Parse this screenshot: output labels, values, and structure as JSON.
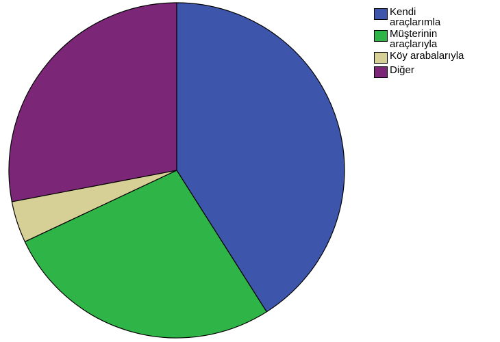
{
  "chart_data": {
    "type": "pie",
    "title": "",
    "categories": [
      "Kendi\naraçlarımla",
      "Müşterinin\naraçlarıyla",
      "Köy arabalarıyla",
      "Diğer"
    ],
    "values": [
      41,
      27,
      4,
      28
    ],
    "colors": [
      "#3d55ab",
      "#2fb547",
      "#d6cf96",
      "#7b2676"
    ],
    "start": "12 o'clock",
    "direction": "clockwise",
    "legend_position": "top-right",
    "legend": [
      {
        "label": "Kendi\naraçlarımla",
        "color": "#3d55ab"
      },
      {
        "label": "Müşterinin\naraçlarıyla",
        "color": "#2fb547"
      },
      {
        "label": "Köy arabalarıyla",
        "color": "#d6cf96"
      },
      {
        "label": "Diğer",
        "color": "#7b2676"
      }
    ]
  }
}
